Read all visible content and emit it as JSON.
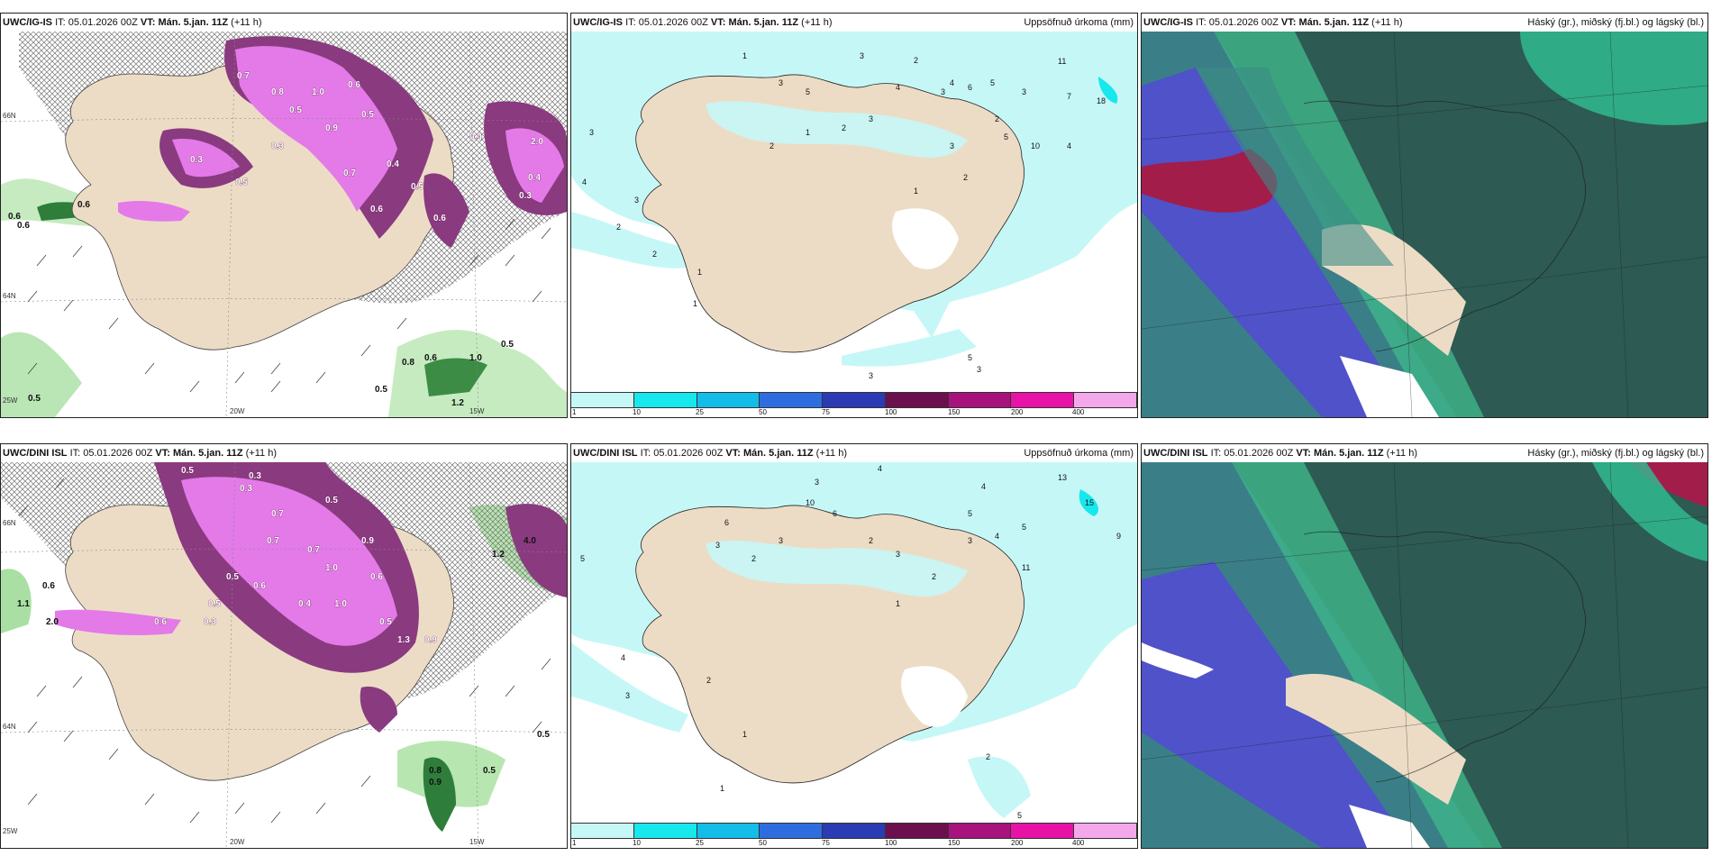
{
  "panels": {
    "top_left": {
      "model": "UWC/IG-IS",
      "it_label": "IT:",
      "it": "05.01.2026 00Z",
      "vt_label": "VT:",
      "vt": "Mán. 5.jan. 11Z",
      "lead": "(+11 h)",
      "title_right": ""
    },
    "top_mid": {
      "model": "UWC/IG-IS",
      "it_label": "IT:",
      "it": "05.01.2026 00Z",
      "vt_label": "VT:",
      "vt": "Mán. 5.jan. 11Z",
      "lead": "(+11 h)",
      "title_right": "Uppsöfnuð úrkoma (mm)"
    },
    "top_right": {
      "model": "UWC/IG-IS",
      "it_label": "IT:",
      "it": "05.01.2026 00Z",
      "vt_label": "VT:",
      "vt": "Mán. 5.jan. 11Z",
      "lead": "(+11 h)",
      "title_right": "Háský (gr.), miðský (fj.bl.) og lágský (bl.)"
    },
    "bottom_left": {
      "model": "UWC/DINI ISL",
      "it_label": "IT:",
      "it": "05.01.2026 00Z",
      "vt_label": "VT:",
      "vt": "Mán. 5.jan. 11Z",
      "lead": "(+11 h)",
      "title_right": ""
    },
    "bottom_mid": {
      "model": "UWC/DINI ISL",
      "it_label": "IT:",
      "it": "05.01.2026 00Z",
      "vt_label": "VT:",
      "vt": "Mán. 5.jan. 11Z",
      "lead": "(+11 h)",
      "title_right": "Uppsöfnuð úrkoma (mm)"
    },
    "bottom_right": {
      "model": "UWC/DINI ISL",
      "it_label": "IT:",
      "it": "05.01.2026 00Z",
      "vt_label": "VT:",
      "vt": "Mán. 5.jan. 11Z",
      "lead": "(+11 h)",
      "title_right": "Hásky (gr.), miðský (fj.bl.) og lágský (bl.)"
    }
  },
  "axes": {
    "lon_20w": "20W",
    "lon_15w": "15W",
    "lat_66n": "66N",
    "lat_64n": "64N",
    "lon_25w": "25W"
  },
  "legend": {
    "ticks": [
      "1",
      "10",
      "25",
      "50",
      "75",
      "100",
      "150",
      "200",
      "400"
    ],
    "colors": [
      "#c6f7f7",
      "#17e8ee",
      "#14bde8",
      "#2e6de0",
      "#2a3bb3",
      "#6b0f4f",
      "#a8127d",
      "#e812a6",
      "#f4a8ec"
    ]
  },
  "labels": {
    "tl_magenta": [
      "0.7",
      "0.8",
      "0.5",
      "1.0",
      "0.6",
      "0.9",
      "0.5",
      "0.3",
      "0.4",
      "0.6",
      "0.7",
      "0.5",
      "0.3",
      "2.0",
      "0.4",
      "0.3",
      "0.6",
      "0.5",
      "0.4"
    ],
    "tl_green": [
      "0.6",
      "0.6",
      "0.6",
      "0.5",
      "0.8",
      "0.6",
      "1.0",
      "0.5",
      "0.5",
      "1.2"
    ],
    "tm_numbers": [
      "1",
      "3",
      "5",
      "3",
      "2",
      "4",
      "6",
      "3",
      "11",
      "7",
      "18",
      "3",
      "2",
      "5",
      "4",
      "3",
      "2",
      "1",
      "2",
      "4",
      "5",
      "3",
      "10",
      "1",
      "2",
      "3",
      "4",
      "2",
      "2",
      "3",
      "1",
      "1",
      "3",
      "5",
      "3"
    ],
    "bl_magenta": [
      "0.5",
      "0.3",
      "0.3",
      "0.5",
      "0.7",
      "0.9",
      "1.0",
      "0.6",
      "0.5",
      "0.4",
      "0.6",
      "0.5",
      "0.7",
      "1.3",
      "0.9",
      "0.5",
      "0.3",
      "1.0",
      "0.6",
      "0.7"
    ],
    "bl_green": [
      "0.6",
      "1.1",
      "2.0",
      "0.8",
      "0.9",
      "0.5",
      "0.5",
      "1.2",
      "4.0"
    ],
    "bm_numbers": [
      "4",
      "3",
      "13",
      "15",
      "9",
      "10",
      "6",
      "5",
      "4",
      "11",
      "2",
      "3",
      "4",
      "5",
      "3",
      "2",
      "1",
      "3",
      "2",
      "6",
      "3",
      "5",
      "4",
      "2",
      "1",
      "3",
      "2",
      "1",
      "5"
    ]
  }
}
